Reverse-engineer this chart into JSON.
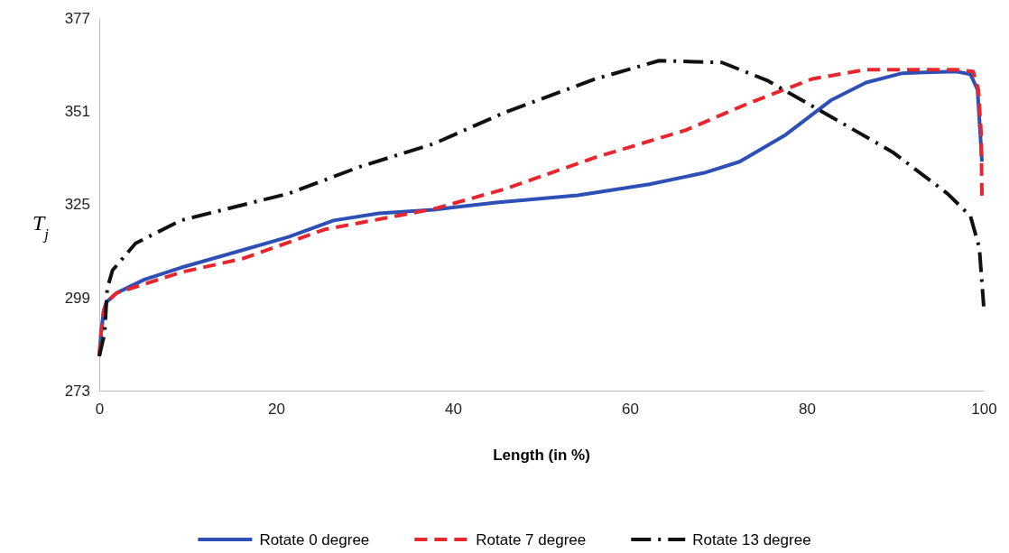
{
  "chart_data": {
    "type": "line",
    "xlabel": "Length (in %)",
    "ylabel": "T$_{j}$",
    "xlim": [
      0,
      100
    ],
    "xticks": [
      0,
      20,
      40,
      60,
      80,
      100
    ],
    "ylim": [
      273,
      377
    ],
    "yticks": [
      273,
      299,
      325,
      351,
      377
    ],
    "legend": "bottom",
    "series": [
      {
        "name": "Rotate 0 degree",
        "color": "#2e4fb5",
        "line_style": "solid",
        "x": [
          0,
          0.2,
          0.5,
          0.8,
          2,
          5.1,
          9.2,
          15.3,
          21.4,
          26.5,
          31.6,
          37.8,
          44.9,
          54.1,
          62.2,
          68.4,
          72.4,
          77.6,
          82.7,
          86.7,
          90.8,
          96.9,
          98.5,
          99.3,
          99.8
        ],
        "values": [
          282.6,
          289,
          295.2,
          297.7,
          300.3,
          304,
          307.3,
          311.6,
          315.9,
          320.5,
          322.5,
          323.5,
          325.5,
          327.5,
          330.6,
          333.8,
          336.9,
          344.4,
          354,
          359,
          361.6,
          362.1,
          361.3,
          357,
          336.9
        ]
      },
      {
        "name": "Rotate 7 degree",
        "color": "#e8262e",
        "line_style": "dashed",
        "x": [
          0,
          0.2,
          0.5,
          0.8,
          2,
          9.2,
          16.3,
          25.5,
          37.8,
          45.9,
          56.1,
          66.3,
          73.5,
          80.6,
          86.7,
          96.9,
          98.8,
          99.4,
          99.7,
          99.8
        ],
        "values": [
          282.6,
          289,
          295.2,
          297.7,
          300.3,
          306,
          309.9,
          318,
          323.7,
          329.3,
          338.1,
          345.7,
          353.3,
          360,
          362.6,
          362.6,
          362.1,
          357,
          345,
          326.8
        ]
      },
      {
        "name": "Rotate 13 degree",
        "color": "#111111",
        "line_style": "dashdot",
        "x": [
          0,
          0.6,
          0.9,
          1.5,
          4.1,
          9.2,
          17.3,
          21.4,
          29.6,
          37.8,
          45.9,
          56.1,
          63.3,
          70.4,
          75.5,
          82.7,
          89.8,
          95.9,
          98.5,
          99.5,
          100
        ],
        "values": [
          282.6,
          289,
          301.5,
          306.6,
          314.1,
          320.5,
          325.5,
          328,
          335.6,
          341.9,
          350.7,
          360,
          365.1,
          364.6,
          359.6,
          349.5,
          339.4,
          328,
          321.7,
          312.9,
          296.5
        ]
      }
    ]
  }
}
